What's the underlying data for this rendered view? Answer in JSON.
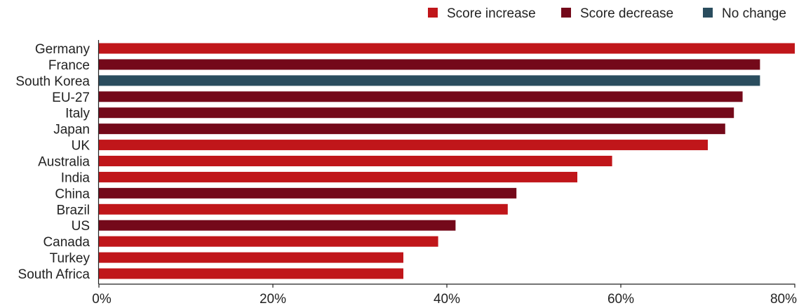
{
  "chart_data": {
    "type": "bar",
    "orientation": "horizontal",
    "categories": [
      "Germany",
      "France",
      "South Korea",
      "EU-27",
      "Italy",
      "Japan",
      "UK",
      "Australia",
      "India",
      "China",
      "Brazil",
      "US",
      "Canada",
      "Turkey",
      "South Africa"
    ],
    "values": [
      80,
      76,
      76,
      74,
      73,
      72,
      70,
      59,
      55,
      48,
      47,
      41,
      39,
      35,
      35
    ],
    "status": [
      "increase",
      "decrease",
      "no_change",
      "decrease",
      "decrease",
      "decrease",
      "increase",
      "increase",
      "increase",
      "decrease",
      "increase",
      "decrease",
      "increase",
      "increase",
      "increase"
    ],
    "xlim": [
      0,
      80
    ],
    "xticks": [
      0,
      20,
      40,
      60,
      80
    ],
    "xtick_labels": [
      "0%",
      "20%",
      "40%",
      "60%",
      "80%"
    ],
    "grid": false,
    "legend_position": "top-right",
    "legend": [
      {
        "key": "increase",
        "label": "Score increase",
        "color": "#C0161A"
      },
      {
        "key": "decrease",
        "label": "Score decrease",
        "color": "#74091A"
      },
      {
        "key": "no_change",
        "label": "No change",
        "color": "#2A4D5E"
      }
    ]
  }
}
